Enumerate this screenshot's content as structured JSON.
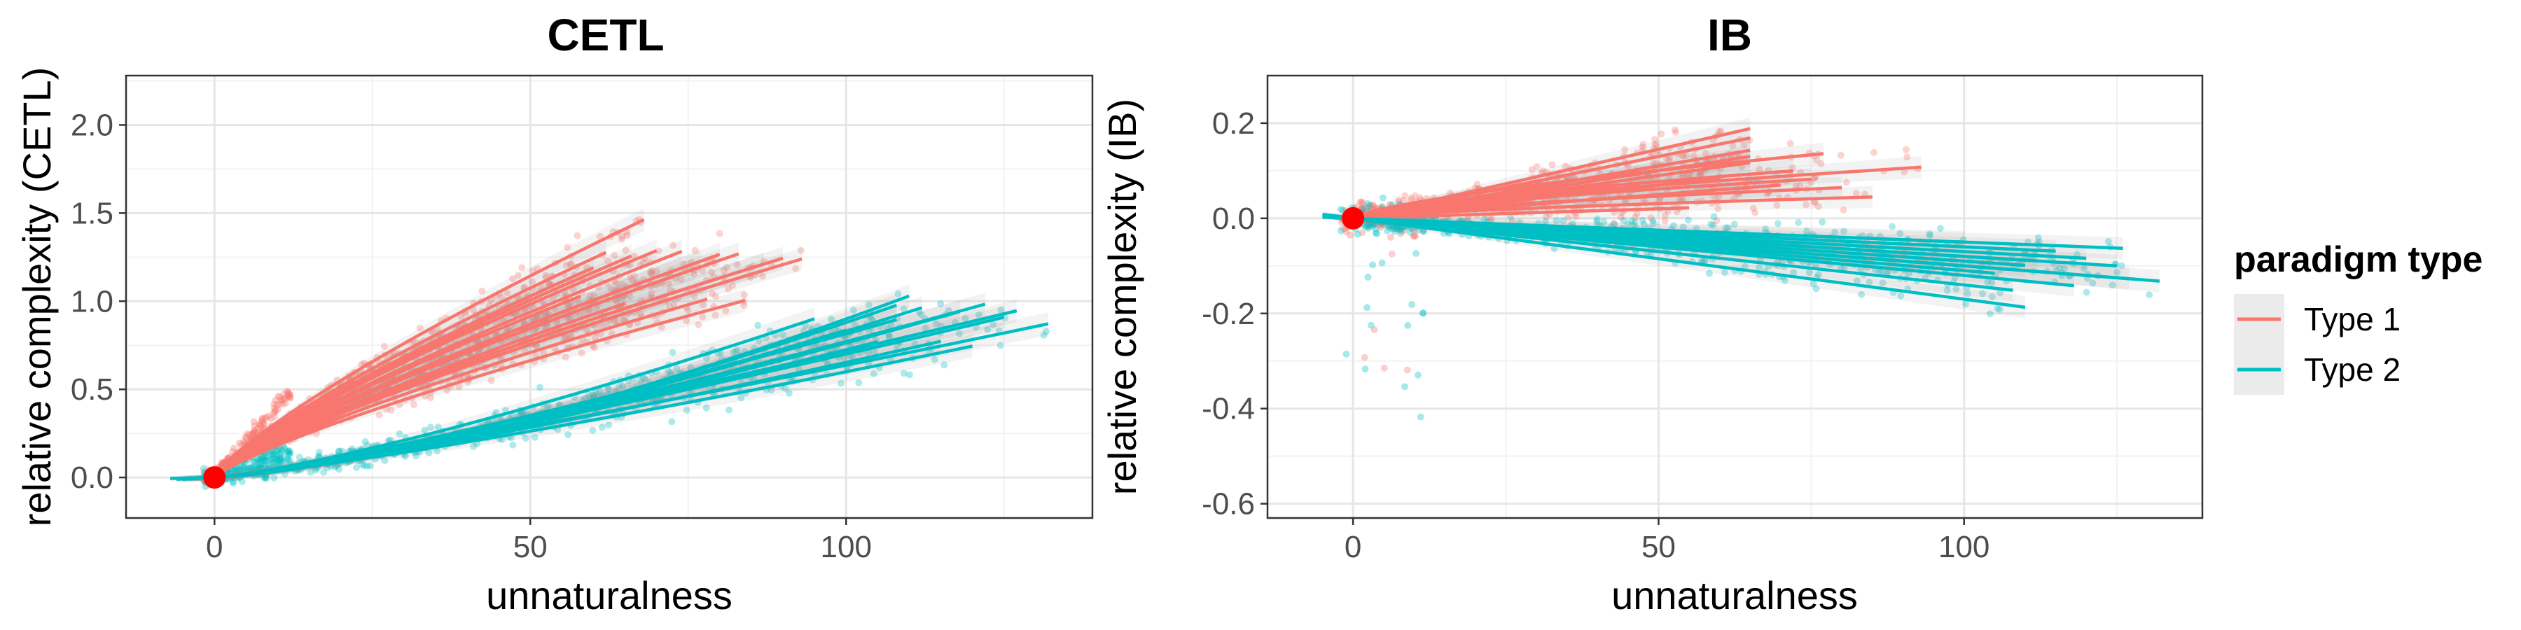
{
  "legend": {
    "title": "paradigm type",
    "items": [
      {
        "label": "Type 1",
        "color": "#F8766D"
      },
      {
        "label": "Type 2",
        "color": "#00BFC4"
      }
    ],
    "position": "right"
  },
  "reference_point_color": "#FF0000",
  "chart_data": [
    {
      "type": "scatter",
      "title": "CETL",
      "xlabel": "unnaturalness",
      "ylabel": "relative complexity (CETL)",
      "xlim": [
        -14,
        139
      ],
      "ylim": [
        -0.23,
        2.28
      ],
      "xticks": [
        0,
        50,
        100
      ],
      "xtick_labels": [
        "0",
        "50",
        "100"
      ],
      "yticks": [
        0,
        0.5,
        1,
        1.5,
        2
      ],
      "ytick_labels": [
        "0.0",
        "0.5",
        "1.0",
        "1.5",
        "2.0"
      ],
      "grid": true,
      "reference_point": {
        "x": 0,
        "y": 0
      },
      "series": [
        {
          "name": "Type 1",
          "color": "#F8766D",
          "curves": [
            {
              "x0": 0,
              "x1": 50,
              "a": 0.045,
              "p": 0.8
            },
            {
              "x0": 0,
              "x1": 58,
              "a": 0.04,
              "p": 0.8
            },
            {
              "x0": 0,
              "x1": 62,
              "a": 0.047,
              "p": 0.8
            },
            {
              "x0": 0,
              "x1": 66,
              "a": 0.044,
              "p": 0.8
            },
            {
              "x0": 0,
              "x1": 70,
              "a": 0.043,
              "p": 0.8
            },
            {
              "x0": 0,
              "x1": 74,
              "a": 0.041,
              "p": 0.8
            },
            {
              "x0": 0,
              "x1": 77,
              "a": 0.038,
              "p": 0.8
            },
            {
              "x0": 0,
              "x1": 80,
              "a": 0.038,
              "p": 0.8
            },
            {
              "x0": 0,
              "x1": 83,
              "a": 0.037,
              "p": 0.8
            },
            {
              "x0": 0,
              "x1": 87,
              "a": 0.034,
              "p": 0.8
            },
            {
              "x0": 0,
              "x1": 90,
              "a": 0.034,
              "p": 0.8
            },
            {
              "x0": 0,
              "x1": 93,
              "a": 0.033,
              "p": 0.8
            },
            {
              "x0": 0,
              "x1": 65,
              "a": 0.035,
              "p": 0.8
            },
            {
              "x0": 0,
              "x1": 72,
              "a": 0.033,
              "p": 0.8
            },
            {
              "x0": 0,
              "x1": 78,
              "a": 0.031,
              "p": 0.8
            },
            {
              "x0": 0,
              "x1": 84,
              "a": 0.029,
              "p": 0.8
            },
            {
              "x0": 0,
              "x1": 76,
              "a": 0.037,
              "p": 0.8
            },
            {
              "x0": 0,
              "x1": 68,
              "a": 0.05,
              "p": 0.8
            },
            {
              "x0": 0,
              "x1": 60,
              "a": 0.045,
              "p": 0.8
            },
            {
              "x0": 0,
              "x1": 66,
              "a": 0.038,
              "p": 0.8
            }
          ]
        },
        {
          "name": "Type 2",
          "color": "#00BFC4",
          "curves": [
            {
              "x0": -7,
              "x1": 110,
              "a": 0.0013,
              "p": 1.42
            },
            {
              "x0": -5,
              "x1": 108,
              "a": 0.0016,
              "p": 1.37
            },
            {
              "x0": -6,
              "x1": 112,
              "a": 0.0019,
              "p": 1.32
            },
            {
              "x0": -4,
              "x1": 118,
              "a": 0.0022,
              "p": 1.27
            },
            {
              "x0": -6,
              "x1": 122,
              "a": 0.0028,
              "p": 1.22
            },
            {
              "x0": -3,
              "x1": 125,
              "a": 0.0032,
              "p": 1.17
            },
            {
              "x0": -5,
              "x1": 127,
              "a": 0.0036,
              "p": 1.15
            },
            {
              "x0": -4,
              "x1": 132,
              "a": 0.0035,
              "p": 1.13
            },
            {
              "x0": -3,
              "x1": 105,
              "a": 0.0024,
              "p": 1.24
            },
            {
              "x0": -5,
              "x1": 115,
              "a": 0.0026,
              "p": 1.2
            },
            {
              "x0": -2,
              "x1": 100,
              "a": 0.0021,
              "p": 1.3
            },
            {
              "x0": -6,
              "x1": 120,
              "a": 0.0025,
              "p": 1.19
            },
            {
              "x0": -4,
              "x1": 95,
              "a": 0.0029,
              "p": 1.26
            },
            {
              "x0": -3,
              "x1": 108,
              "a": 0.0031,
              "p": 1.21
            }
          ]
        }
      ]
    },
    {
      "type": "scatter",
      "title": "IB",
      "xlabel": "unnaturalness",
      "ylabel": "relative complexity (IB)",
      "xlim": [
        -14,
        139
      ],
      "ylim": [
        -0.63,
        0.3
      ],
      "xticks": [
        0,
        50,
        100
      ],
      "xtick_labels": [
        "0",
        "50",
        "100"
      ],
      "yticks": [
        -0.6,
        -0.4,
        -0.2,
        0,
        0.2
      ],
      "ytick_labels": [
        "-0.6",
        "-0.4",
        "-0.2",
        "0.0",
        "0.2"
      ],
      "grid": true,
      "reference_point": {
        "x": 0,
        "y": 0
      },
      "series": [
        {
          "name": "Type 1",
          "color": "#F8766D",
          "curves": [
            {
              "x0": 0,
              "x1": 77,
              "a": 0.0065,
              "b": 0.0,
              "p": 0.7
            },
            {
              "x0": 0,
              "x1": 93,
              "a": 0.0045,
              "b": 0.0,
              "p": 0.7
            },
            {
              "x0": 0,
              "x1": 75,
              "a": 0.004,
              "b": 0.0,
              "p": 0.7
            },
            {
              "x0": 0,
              "x1": 85,
              "a": 0.002,
              "b": 0.0,
              "p": 0.7
            },
            {
              "x0": 0,
              "x1": 65,
              "a": 0.003,
              "b": 0.0004,
              "p": 1.0
            },
            {
              "x0": 0,
              "x1": 65,
              "a": 0.003,
              "b": 0.0008,
              "p": 1.0
            },
            {
              "x0": 0,
              "x1": 60,
              "a": 0.0025,
              "b": 0.0011,
              "p": 1.0
            },
            {
              "x0": 0,
              "x1": 65,
              "a": 0.0035,
              "b": 0.0015,
              "p": 1.0
            },
            {
              "x0": 0,
              "x1": 55,
              "a": 0.002,
              "b": 0.0016,
              "p": 1.0
            },
            {
              "x0": 0,
              "x1": 65,
              "a": 0.005,
              "b": 0.0021,
              "p": 1.0
            },
            {
              "x0": 0,
              "x1": 70,
              "a": 0.001,
              "b": 0.0,
              "p": 1.0
            },
            {
              "x0": 0,
              "x1": 80,
              "a": 0.003,
              "b": 0.0,
              "p": 0.7
            },
            {
              "x0": 0,
              "x1": 72,
              "a": 0.005,
              "b": 0.0,
              "p": 0.7
            },
            {
              "x0": 0,
              "x1": 65,
              "a": 0.002,
              "b": 0.0002,
              "p": 1.0
            }
          ]
        },
        {
          "name": "Type 2",
          "color": "#00BFC4",
          "curves": [
            {
              "x0": -5,
              "x1": 110,
              "a": 0.0,
              "b": 0.0017,
              "p": 1.0
            },
            {
              "x0": -4,
              "x1": 127,
              "a": 0.0,
              "b": 0.001,
              "p": 1.0
            },
            {
              "x0": -5,
              "x1": 132,
              "a": 0.0,
              "b": 0.001,
              "p": 1.0
            },
            {
              "x0": -3,
              "x1": 125,
              "a": 0.0,
              "b": 0.0008,
              "p": 1.0
            },
            {
              "x0": -4,
              "x1": 120,
              "a": 0.0,
              "b": 0.0007,
              "p": 1.0
            },
            {
              "x0": -3,
              "x1": 115,
              "a": 0.0,
              "b": 0.0006,
              "p": 1.0
            },
            {
              "x0": -5,
              "x1": 110,
              "a": 0.0,
              "b": 0.0009,
              "p": 1.0
            },
            {
              "x0": -4,
              "x1": 105,
              "a": 0.0,
              "b": 0.0011,
              "p": 1.0
            },
            {
              "x0": -3,
              "x1": 100,
              "a": 0.0,
              "b": 0.0005,
              "p": 1.0
            },
            {
              "x0": -4,
              "x1": 118,
              "a": 0.0,
              "b": 0.0012,
              "p": 1.0
            },
            {
              "x0": -5,
              "x1": 126,
              "a": 0.0,
              "b": 0.0005,
              "p": 1.0
            },
            {
              "x0": -3,
              "x1": 108,
              "a": 0.0,
              "b": 0.0014,
              "p": 1.0
            },
            {
              "x0": -4,
              "x1": 95,
              "a": 0.0,
              "b": 0.001,
              "p": 1.0
            },
            {
              "x0": -3,
              "x1": 112,
              "a": 0.0,
              "b": 0.0008,
              "p": 1.0
            }
          ]
        }
      ]
    }
  ]
}
